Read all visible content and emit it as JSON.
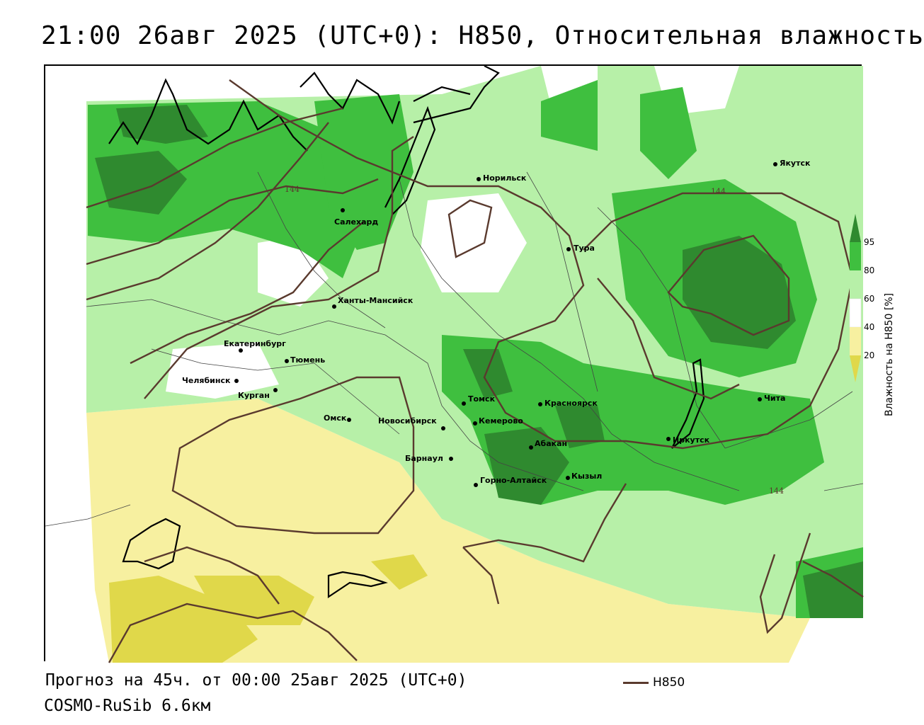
{
  "title": "21:00 26авг 2025 (UTC+0): H850, Относительная влажность",
  "forecast_info": "Прогноз на 45ч. от 00:00 25авг 2025 (UTC+0)",
  "model": "COSMO-RuSib 6.6км",
  "isoline_legend": {
    "label": "H850",
    "color": "#5a3a2e"
  },
  "isoline_labels": [
    "144",
    "144",
    "144"
  ],
  "colorbar": {
    "title": "Влажность на H850 [%]",
    "ticks": [
      "95",
      "80",
      "60",
      "40",
      "20"
    ],
    "colors": {
      "c95": "#2f8a2f",
      "c80": "#3fbf3f",
      "c60": "#b7f0a8",
      "c40": "#ffffff",
      "c20": "#f7f0a0",
      "c0": "#e0d84a"
    }
  },
  "cities": [
    {
      "name": "Якутск"
    },
    {
      "name": "Норильск"
    },
    {
      "name": "Салехард"
    },
    {
      "name": "Тура"
    },
    {
      "name": "Ханты-Мансийск"
    },
    {
      "name": "Екатеринбург"
    },
    {
      "name": "Тюмень"
    },
    {
      "name": "Челябинск"
    },
    {
      "name": "Курган"
    },
    {
      "name": "Омск"
    },
    {
      "name": "Новосибирск"
    },
    {
      "name": "Томск"
    },
    {
      "name": "Красноярск"
    },
    {
      "name": "Кемерово"
    },
    {
      "name": "Барнаул"
    },
    {
      "name": "Абакан"
    },
    {
      "name": "Иркутск"
    },
    {
      "name": "Чита"
    },
    {
      "name": "Горно-Алтайск"
    },
    {
      "name": "Кызыл"
    }
  ]
}
